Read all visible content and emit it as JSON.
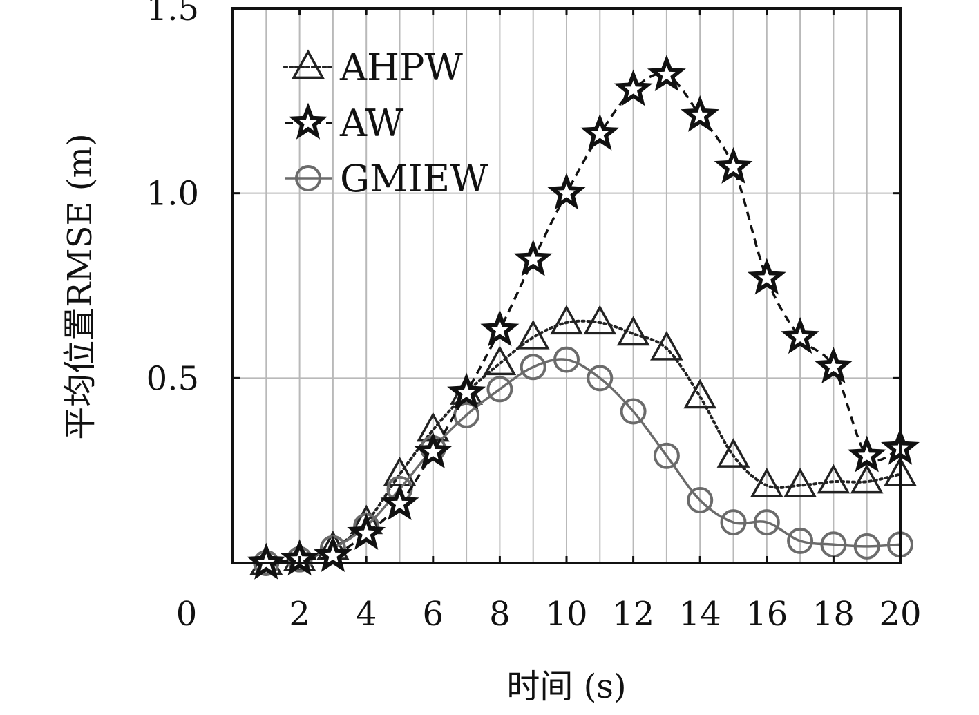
{
  "chart_data": {
    "type": "line",
    "xlabel": "时间 (s)",
    "ylabel": "平均位置RMSE (m)",
    "xlim": [
      0,
      20
    ],
    "ylim": [
      0,
      1.5
    ],
    "x_ticks": [
      0,
      2,
      4,
      6,
      8,
      10,
      12,
      14,
      16,
      18,
      20
    ],
    "x_tick_labels": [
      "0",
      "2",
      "4",
      "6",
      "8",
      "10",
      "12",
      "14",
      "16",
      "18",
      "20"
    ],
    "y_ticks": [
      0.5,
      1.0,
      1.5
    ],
    "y_tick_labels": [
      "0.5",
      "1.0",
      "1.5"
    ],
    "grid": true,
    "legend_position": "top-left",
    "x": [
      1,
      2,
      3,
      4,
      5,
      6,
      7,
      8,
      9,
      10,
      11,
      12,
      13,
      14,
      15,
      16,
      17,
      18,
      19,
      20
    ],
    "series": [
      {
        "name": "AHPW",
        "marker": "triangle",
        "line_style": "dotted",
        "color": "#222222",
        "values": [
          0.0,
          0.01,
          0.04,
          0.11,
          0.24,
          0.36,
          0.46,
          0.54,
          0.61,
          0.65,
          0.65,
          0.62,
          0.58,
          0.45,
          0.29,
          0.21,
          0.21,
          0.22,
          0.22,
          0.24
        ]
      },
      {
        "name": "AW",
        "marker": "star",
        "line_style": "dashed",
        "color": "#111111",
        "values": [
          0.0,
          0.01,
          0.02,
          0.08,
          0.16,
          0.3,
          0.46,
          0.63,
          0.82,
          1.0,
          1.16,
          1.28,
          1.32,
          1.21,
          1.07,
          0.77,
          0.61,
          0.53,
          0.29,
          0.31
        ]
      },
      {
        "name": "GMIEW",
        "marker": "circle",
        "line_style": "solid",
        "color": "#6b6b6b",
        "values": [
          0.0,
          0.01,
          0.04,
          0.1,
          0.2,
          0.31,
          0.4,
          0.47,
          0.53,
          0.55,
          0.5,
          0.41,
          0.29,
          0.17,
          0.11,
          0.11,
          0.06,
          0.05,
          0.045,
          0.05
        ]
      }
    ]
  }
}
